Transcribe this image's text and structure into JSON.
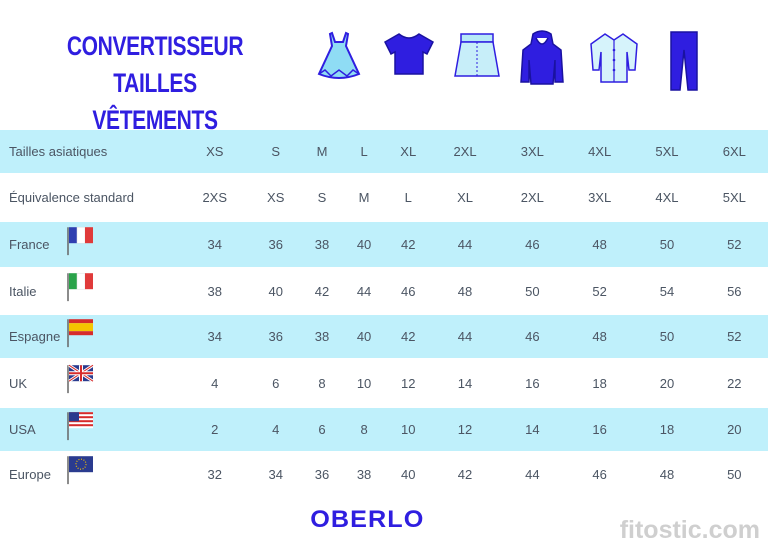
{
  "title": {
    "line1": "CONVERTISSEUR",
    "line2": "TAILLES VÊTEMENTS"
  },
  "clothing_icons": [
    "dress-icon",
    "tshirt-icon",
    "skirt-icon",
    "hoodie-icon",
    "shirt-icon",
    "pants-icon"
  ],
  "colors": {
    "accent": "#2f1ee0",
    "row_highlight": "#bff0fb"
  },
  "rows": [
    {
      "label": "Tailles asiatiques",
      "flag": null,
      "values": [
        "XS",
        "S",
        "M",
        "L",
        "XL",
        "2XL",
        "3XL",
        "4XL",
        "5XL",
        "6XL"
      ]
    },
    {
      "label": "Équivalence standard",
      "flag": null,
      "values": [
        "2XS",
        "XS",
        "S",
        "M",
        "L",
        "XL",
        "2XL",
        "3XL",
        "4XL",
        "5XL"
      ]
    },
    {
      "label": "France",
      "flag": "france-flag-icon",
      "values": [
        "34",
        "36",
        "38",
        "40",
        "42",
        "44",
        "46",
        "48",
        "50",
        "52"
      ]
    },
    {
      "label": "Italie",
      "flag": "italy-flag-icon",
      "values": [
        "38",
        "40",
        "42",
        "44",
        "46",
        "48",
        "50",
        "52",
        "54",
        "56"
      ]
    },
    {
      "label": "Espagne",
      "flag": "spain-flag-icon",
      "values": [
        "34",
        "36",
        "38",
        "40",
        "42",
        "44",
        "46",
        "48",
        "50",
        "52"
      ]
    },
    {
      "label": "UK",
      "flag": "uk-flag-icon",
      "values": [
        "4",
        "6",
        "8",
        "10",
        "12",
        "14",
        "16",
        "18",
        "20",
        "22"
      ]
    },
    {
      "label": "USA",
      "flag": "usa-flag-icon",
      "values": [
        "2",
        "4",
        "6",
        "8",
        "10",
        "12",
        "14",
        "16",
        "18",
        "20"
      ]
    },
    {
      "label": "Europe",
      "flag": "eu-flag-icon",
      "values": [
        "32",
        "34",
        "36",
        "38",
        "40",
        "42",
        "44",
        "46",
        "48",
        "50"
      ]
    }
  ],
  "footer": {
    "logo": "OBERLO",
    "watermark": "fitostic.com"
  }
}
